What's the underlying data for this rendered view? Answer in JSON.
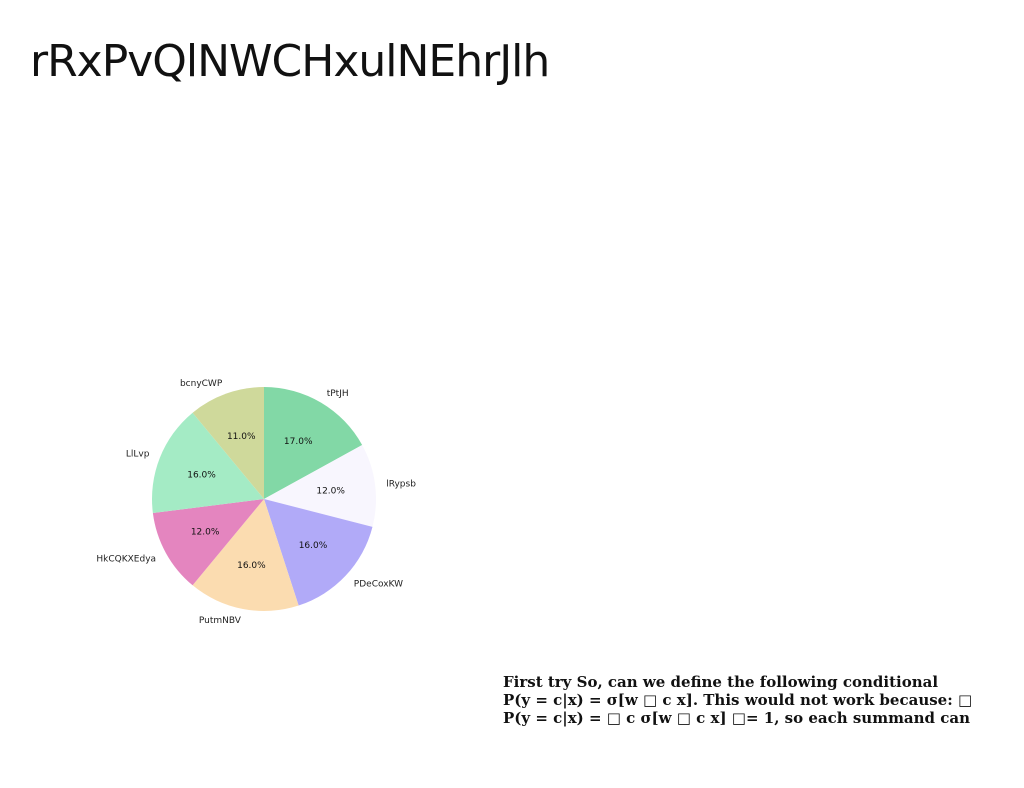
{
  "slide": {
    "title": "rRxPvQlNWCHxulNEhrJlh"
  },
  "chart_data": {
    "type": "pie",
    "title": "",
    "start_angle_deg": 90,
    "direction": "clockwise",
    "slices": [
      {
        "label": "tPtJH",
        "value": 17.0,
        "pct_text": "17.0%",
        "color": "#82d8a6"
      },
      {
        "label": "lRypsb",
        "value": 12.0,
        "pct_text": "12.0%",
        "color": "#f8f6fe"
      },
      {
        "label": "PDeCoxKW",
        "value": 16.0,
        "pct_text": "16.0%",
        "color": "#b1aaf8"
      },
      {
        "label": "PutmNBV",
        "value": 16.0,
        "pct_text": "16.0%",
        "color": "#fbdcb0"
      },
      {
        "label": "HkCQKXEdya",
        "value": 12.0,
        "pct_text": "12.0%",
        "color": "#e485bf"
      },
      {
        "label": "LlLvp",
        "value": 16.0,
        "pct_text": "16.0%",
        "color": "#a4ebc5"
      },
      {
        "label": "bcnyCWP",
        "value": 11.0,
        "pct_text": "11.0%",
        "color": "#cfd99b"
      }
    ]
  },
  "note": {
    "lines": [
      "First try So, can we define the following conditional",
      "P(y = c|x) = σ[w □ c x]. This would not work because: □",
      "P(y = c|x) = □ c σ[w □ c x] □= 1, so each summand can"
    ]
  }
}
